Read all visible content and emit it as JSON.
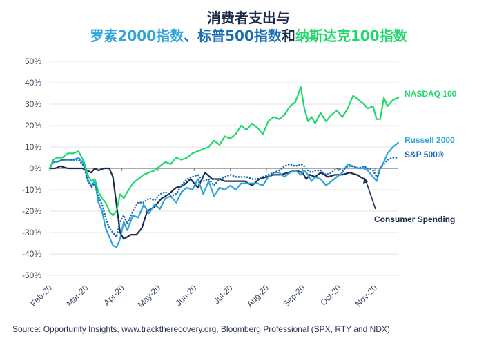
{
  "title": {
    "line1": "消费者支出与",
    "line2_parts": {
      "russell": "罗素2000指数",
      "sep": "、",
      "sp": "标普500指数",
      "and": "和",
      "nasdaq": "纳斯达克100指数"
    }
  },
  "source": "Source: Opportunity Insights, www.tracktherecovery.org, Bloomberg Professional (SPX, RTY and NDX)",
  "colors": {
    "nasdaq": "#1fd86b",
    "russell": "#2ea3dc",
    "sp500": "#1a6db3",
    "consumer": "#1c2b4a",
    "grid": "#e3e3e3",
    "zero": "#777777"
  },
  "chart_data": {
    "type": "line",
    "title": "消费者支出与 罗素2000指数、标普500指数和纳斯达克100指数",
    "approximate": true,
    "note": "Series values are hand-traced estimates read off the rendered lines, not source data.",
    "xlabel": "",
    "ylabel": "",
    "ylim": [
      -50,
      50
    ],
    "yticks": [
      50,
      40,
      30,
      20,
      10,
      0,
      -10,
      -20,
      -30,
      -40,
      -50
    ],
    "ytick_labels": [
      "50%",
      "40%",
      "30%",
      "20%",
      "10%",
      "0%",
      "-10%",
      "-20%",
      "-30%",
      "-40%",
      "-50%"
    ],
    "xticks": [
      "Feb-20",
      "Mar-20",
      "Apr-20",
      "May-20",
      "Jun-20",
      "Jul-20",
      "Aug-20",
      "Sep-20",
      "Oct-20",
      "Nov-20"
    ],
    "x_unit": "months since Feb-20 (0 = Feb-20, 9 = Nov-20)",
    "xlim": [
      0,
      9.65
    ],
    "grid": true,
    "legend": "right (direct labels)",
    "annotations": [
      {
        "text": "Consumer Spending",
        "points_to": "consumer"
      }
    ],
    "series": [
      {
        "key": "nasdaq",
        "name": "NASDAQ 100",
        "style": "solid",
        "x": [
          0,
          0.1,
          0.2,
          0.35,
          0.5,
          0.65,
          0.8,
          0.95,
          1.05,
          1.15,
          1.25,
          1.35,
          1.45,
          1.55,
          1.65,
          1.75,
          1.85,
          1.95,
          2.05,
          2.15,
          2.3,
          2.45,
          2.6,
          2.75,
          2.9,
          3.05,
          3.2,
          3.35,
          3.5,
          3.65,
          3.8,
          3.95,
          4.1,
          4.25,
          4.4,
          4.55,
          4.7,
          4.85,
          5.0,
          5.15,
          5.3,
          5.45,
          5.6,
          5.75,
          5.9,
          6.05,
          6.2,
          6.35,
          6.5,
          6.65,
          6.8,
          6.95,
          7.05,
          7.15,
          7.25,
          7.35,
          7.5,
          7.65,
          7.8,
          7.95,
          8.1,
          8.25,
          8.4,
          8.55,
          8.7,
          8.8,
          8.95,
          9.05,
          9.15,
          9.25,
          9.35,
          9.5,
          9.65
        ],
        "y": [
          0,
          4,
          5,
          5,
          7,
          7,
          8,
          3,
          -3,
          -6,
          -5,
          -11,
          -14,
          -16,
          -20,
          -22,
          -20,
          -12,
          -14,
          -11,
          -7,
          -5,
          -3,
          -2,
          -1,
          1,
          3,
          2,
          5,
          4,
          5,
          7,
          8,
          9,
          10,
          13,
          11,
          15,
          14,
          16,
          20,
          18,
          21,
          19,
          16,
          22,
          24,
          23,
          25,
          29,
          31,
          38,
          28,
          22,
          24,
          21,
          26,
          22,
          25,
          27,
          24,
          28,
          34,
          32,
          30,
          28,
          29,
          23,
          23,
          33,
          29,
          32,
          33
        ]
      },
      {
        "key": "russell",
        "name": "Russell 2000",
        "style": "solid",
        "x": [
          0,
          0.1,
          0.2,
          0.35,
          0.5,
          0.65,
          0.8,
          0.95,
          1.05,
          1.15,
          1.25,
          1.35,
          1.45,
          1.55,
          1.65,
          1.75,
          1.85,
          1.95,
          2.05,
          2.15,
          2.3,
          2.45,
          2.6,
          2.75,
          2.9,
          3.05,
          3.2,
          3.35,
          3.5,
          3.65,
          3.8,
          3.95,
          4.1,
          4.25,
          4.4,
          4.55,
          4.7,
          4.85,
          5.0,
          5.15,
          5.3,
          5.45,
          5.6,
          5.75,
          5.9,
          6.05,
          6.2,
          6.35,
          6.5,
          6.65,
          6.8,
          6.95,
          7.05,
          7.15,
          7.25,
          7.35,
          7.5,
          7.65,
          7.8,
          7.95,
          8.1,
          8.25,
          8.4,
          8.55,
          8.7,
          8.8,
          8.95,
          9.05,
          9.15,
          9.25,
          9.35,
          9.5,
          9.65
        ],
        "y": [
          0,
          3,
          3,
          4,
          4,
          4,
          5,
          2,
          -5,
          -8,
          -6,
          -16,
          -20,
          -28,
          -32,
          -36,
          -37,
          -33,
          -25,
          -29,
          -22,
          -23,
          -17,
          -21,
          -17,
          -19,
          -14,
          -13,
          -16,
          -11,
          -9,
          -10,
          -5,
          -12,
          -6,
          -13,
          -9,
          -10,
          -8,
          -10,
          -7,
          -7,
          -7,
          -7,
          -8,
          -4,
          -2,
          -2,
          -4,
          -2,
          -1,
          -3,
          -1,
          -3,
          -6,
          -4,
          -5,
          -8,
          -6,
          -4,
          -2,
          2,
          1,
          0,
          0,
          -1,
          -4,
          -6,
          0,
          3,
          7,
          10,
          12
        ]
      },
      {
        "key": "sp500",
        "name": "S&P 500®",
        "style": "dotted",
        "x": [
          0,
          0.1,
          0.2,
          0.35,
          0.5,
          0.65,
          0.8,
          0.95,
          1.05,
          1.15,
          1.25,
          1.35,
          1.45,
          1.55,
          1.65,
          1.75,
          1.85,
          1.95,
          2.05,
          2.15,
          2.3,
          2.45,
          2.6,
          2.75,
          2.9,
          3.05,
          3.2,
          3.35,
          3.5,
          3.65,
          3.8,
          3.95,
          4.1,
          4.25,
          4.4,
          4.55,
          4.7,
          4.85,
          5.0,
          5.15,
          5.3,
          5.45,
          5.6,
          5.75,
          5.9,
          6.05,
          6.2,
          6.35,
          6.5,
          6.65,
          6.8,
          6.95,
          7.05,
          7.15,
          7.25,
          7.35,
          7.5,
          7.65,
          7.8,
          7.95,
          8.1,
          8.25,
          8.4,
          8.55,
          8.7,
          8.8,
          8.95,
          9.05,
          9.15,
          9.25,
          9.35,
          9.5,
          9.65
        ],
        "y": [
          0,
          3,
          3,
          4,
          4,
          4,
          4,
          1,
          -6,
          -9,
          -7,
          -13,
          -17,
          -23,
          -28,
          -30,
          -32,
          -25,
          -22,
          -26,
          -20,
          -16,
          -16,
          -14,
          -15,
          -12,
          -11,
          -13,
          -12,
          -8,
          -5,
          -4,
          -3,
          -6,
          -5,
          -8,
          -5,
          -4,
          -3,
          -4,
          -4,
          -4,
          -5,
          -5,
          -4,
          -3,
          -2,
          -1,
          1,
          2,
          1,
          2,
          1,
          -1,
          -2,
          -1,
          -1,
          -3,
          -2,
          0,
          -1,
          1,
          1,
          0,
          1,
          0,
          -1,
          -4,
          0,
          2,
          4,
          5,
          5
        ]
      },
      {
        "key": "consumer",
        "name": "Consumer Spending",
        "style": "solid",
        "x": [
          0,
          0.15,
          0.3,
          0.5,
          0.7,
          0.9,
          1.05,
          1.15,
          1.25,
          1.35,
          1.5,
          1.65,
          1.75,
          1.85,
          1.95,
          2.05,
          2.15,
          2.25,
          2.4,
          2.55,
          2.7,
          2.9,
          3.1,
          3.3,
          3.5,
          3.7,
          3.9,
          4.1,
          4.3,
          4.5,
          4.7,
          4.85,
          5.0,
          5.2,
          5.4,
          5.6,
          5.8,
          6.0,
          6.2,
          6.4,
          6.6,
          6.8,
          7.0,
          7.1,
          7.2,
          7.35,
          7.5,
          7.7,
          7.9,
          8.1,
          8.3,
          8.5,
          8.6,
          8.7
        ],
        "y": [
          0,
          0,
          1,
          0,
          0,
          0,
          -1,
          -2,
          0,
          -1,
          0,
          0,
          -4,
          -17,
          -30,
          -33,
          -32,
          -31,
          -31,
          -28,
          -20,
          -18,
          -14,
          -12,
          -9,
          -8,
          -5,
          -9,
          -2,
          -5,
          -5,
          -6,
          -6,
          -6,
          -6,
          -8,
          -5,
          -4,
          -3,
          -3,
          -2,
          -1,
          -2,
          -5,
          -3,
          -4,
          -2,
          -4,
          -3,
          -3,
          -2,
          -3,
          -4,
          -5
        ]
      }
    ]
  }
}
